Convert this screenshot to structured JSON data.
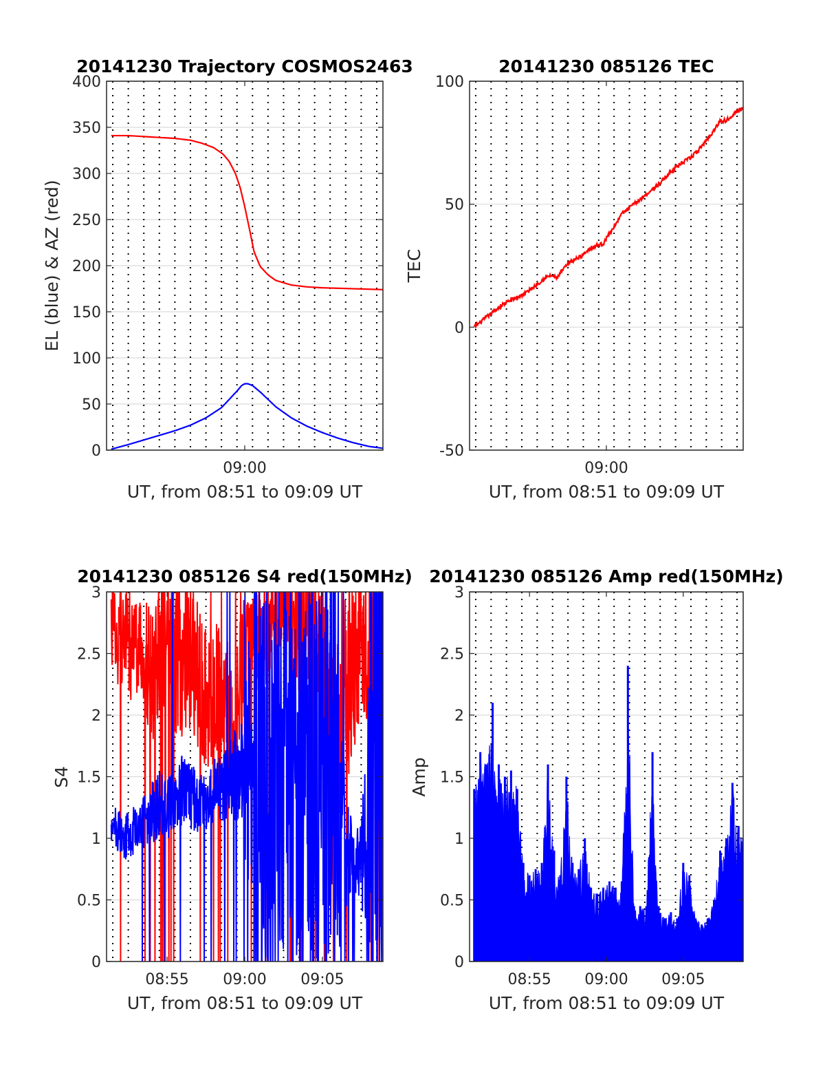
{
  "colors": {
    "red_series": "#ff0000",
    "blue_series": "#0000ff",
    "grid": "#d9d9d9",
    "axis": "#262626"
  },
  "chart_data": [
    {
      "id": "trajectory",
      "type": "line",
      "title": "20141230 Trajectory COSMOS2463",
      "xlabel": "UT, from 08:51 to 09:09 UT",
      "ylabel": "EL (blue) & AZ (red)",
      "x_unit": "minutes after 08:00 UT",
      "xlim": [
        51.1,
        68.9
      ],
      "ylim": [
        0,
        400
      ],
      "yticks": [
        0,
        50,
        100,
        150,
        200,
        250,
        300,
        350,
        400
      ],
      "ytick_labels": [
        "0",
        "50",
        "100",
        "150",
        "200",
        "250",
        "300",
        "350",
        "400"
      ],
      "xticks": [
        60
      ],
      "xtick_labels": [
        "09:00"
      ],
      "vgrid_dotted_minutes": [
        51.5,
        52.5,
        53.5,
        54.5,
        55.5,
        56.5,
        57.5,
        58.5,
        59.5,
        60.5,
        61.5,
        62.5,
        63.5,
        64.5,
        65.5,
        66.5,
        67.5,
        68.5
      ],
      "hgrid": true,
      "series": [
        {
          "color": "red",
          "kind": "line",
          "x": [
            51.4,
            52.5,
            53.5,
            54.5,
            55.5,
            56.5,
            57.2,
            58.0,
            58.6,
            59.0,
            59.4,
            59.7,
            60.0,
            60.3,
            60.6,
            61.0,
            61.5,
            62.0,
            63.0,
            64.0,
            65.0,
            66.0,
            67.0,
            68.0,
            68.9
          ],
          "y": [
            341,
            341,
            340,
            339,
            338,
            336,
            333,
            328,
            321,
            313,
            300,
            285,
            264,
            240,
            215,
            199,
            190,
            184,
            179,
            177,
            176,
            175.5,
            175,
            174.5,
            174
          ]
        },
        {
          "color": "blue",
          "kind": "line",
          "x": [
            51.4,
            52.5,
            53.5,
            54.5,
            55.5,
            56.5,
            57.5,
            58.5,
            59.0,
            59.5,
            59.8,
            60.0,
            60.2,
            60.5,
            61.0,
            61.5,
            62.0,
            62.5,
            63.0,
            64.0,
            65.0,
            66.0,
            67.0,
            68.0,
            68.9
          ],
          "y": [
            1,
            6,
            11,
            16,
            21,
            27,
            35,
            46,
            55,
            64,
            70,
            72,
            72,
            70,
            63,
            55,
            47,
            41,
            35,
            26,
            19,
            13,
            8,
            4,
            2
          ]
        }
      ]
    },
    {
      "id": "tec",
      "type": "line",
      "title": "20141230 085126 TEC",
      "xlabel": "UT, from 08:51 to 09:09 UT",
      "ylabel": "TEC",
      "x_unit": "minutes after 08:00 UT",
      "xlim": [
        51.1,
        68.9
      ],
      "ylim": [
        -50,
        100
      ],
      "yticks": [
        -50,
        0,
        50,
        100
      ],
      "ytick_labels": [
        "-50",
        "0",
        "50",
        "100"
      ],
      "xticks": [
        60
      ],
      "xtick_labels": [
        "09:00"
      ],
      "vgrid_dotted_minutes": [
        51.5,
        52.5,
        53.5,
        54.5,
        55.5,
        56.5,
        57.5,
        58.5,
        59.5,
        60.5,
        61.5,
        62.5,
        63.5,
        64.5,
        65.5,
        66.5,
        67.5,
        68.5
      ],
      "hgrid": true,
      "series": [
        {
          "color": "red",
          "kind": "line",
          "x": [
            51.4,
            52.0,
            52.6,
            53.2,
            53.8,
            54.5,
            55.0,
            55.6,
            56.0,
            56.4,
            56.8,
            57.0,
            57.4,
            57.8,
            58.4,
            58.9,
            59.3,
            59.8,
            60.1,
            60.4,
            60.7,
            61.0,
            61.6,
            62.2,
            62.8,
            63.4,
            64.0,
            64.5,
            65.0,
            65.5,
            66.0,
            66.5,
            67.0,
            67.4,
            67.8,
            68.3,
            68.9
          ],
          "y": [
            0,
            3,
            6,
            9,
            11,
            13,
            15,
            18,
            20,
            21,
            20,
            22,
            25,
            27,
            29,
            32,
            33,
            34,
            37,
            40,
            43,
            46,
            49,
            52,
            55,
            58,
            62,
            65,
            67,
            69,
            72,
            76,
            80,
            84,
            84,
            87,
            89
          ]
        }
      ]
    },
    {
      "id": "s4",
      "type": "line",
      "title": "20141230 085126 S4 red(150MHz)",
      "xlabel": "UT, from 08:51 to 09:09 UT",
      "ylabel": "S4",
      "x_unit": "minutes after 08:00 UT",
      "xlim": [
        51.1,
        68.9
      ],
      "ylim": [
        0,
        3
      ],
      "yticks": [
        0,
        0.5,
        1,
        1.5,
        2,
        2.5,
        3
      ],
      "ytick_labels": [
        "0",
        "0.5",
        "1",
        "1.5",
        "2",
        "2.5",
        "3"
      ],
      "xticks": [
        55,
        60,
        65
      ],
      "xtick_labels": [
        "08:55",
        "09:00",
        "09:05"
      ],
      "vgrid_dotted_minutes": [
        51.5,
        52.5,
        53.5,
        54.5,
        55.5,
        56.5,
        57.5,
        58.5,
        59.5,
        60.5,
        61.5,
        62.5,
        63.5,
        64.5,
        65.5,
        66.5,
        67.5,
        68.5
      ],
      "hgrid": true,
      "series": [
        {
          "color": "red",
          "kind": "noisy",
          "x": [
            51.4,
            51.8,
            52.2,
            52.7,
            53.3,
            54.0,
            54.6,
            55.2,
            55.8,
            56.4,
            57.0,
            57.6,
            58.2,
            58.8,
            59.4,
            59.8,
            60.2,
            60.6,
            61.0,
            61.5,
            62.0,
            62.5,
            63.0,
            63.5,
            64.0,
            64.5,
            65.0,
            65.5,
            66.0,
            66.5,
            67.0,
            67.5,
            68.0,
            68.5,
            68.9
          ],
          "y": [
            2.8,
            2.6,
            2.7,
            2.5,
            2.6,
            2.3,
            2.6,
            2.5,
            2.4,
            2.5,
            2.3,
            2.1,
            2.2,
            2.0,
            1.8,
            2.3,
            2.6,
            2.8,
            2.6,
            2.8,
            2.7,
            2.8,
            2.7,
            2.6,
            2.8,
            2.7,
            2.5,
            2.0,
            1.9,
            2.2,
            2.4,
            2.6,
            2.4,
            2.7,
            2.8
          ],
          "amplitude": [
            0.35,
            0.45,
            0.4,
            0.45,
            0.4,
            0.6,
            0.5,
            0.6,
            0.6,
            0.6,
            0.6,
            0.55,
            0.6,
            0.65,
            0.6,
            0.6,
            0.5,
            0.4,
            0.6,
            0.5,
            0.5,
            0.4,
            0.5,
            0.6,
            0.5,
            0.5,
            0.6,
            0.8,
            0.8,
            0.8,
            0.7,
            0.6,
            0.7,
            0.5,
            0.4
          ]
        },
        {
          "color": "blue",
          "kind": "noisy",
          "x": [
            51.4,
            51.8,
            52.2,
            52.7,
            53.3,
            54.0,
            54.6,
            55.2,
            55.8,
            56.4,
            57.0,
            57.6,
            58.2,
            58.8,
            59.4,
            59.8,
            60.2,
            60.6,
            61.0,
            61.5,
            62.0,
            62.5,
            63.0,
            63.5,
            64.0,
            64.5,
            65.0,
            65.5,
            66.0,
            66.5,
            67.0,
            67.5,
            68.0,
            68.5,
            68.9
          ],
          "y": [
            1.05,
            1.1,
            1.0,
            1.05,
            1.1,
            1.2,
            1.3,
            1.25,
            1.4,
            1.35,
            1.3,
            1.25,
            1.4,
            1.45,
            1.5,
            1.5,
            1.6,
            1.9,
            1.7,
            1.5,
            1.4,
            1.6,
            1.5,
            1.5,
            1.4,
            1.5,
            1.5,
            1.3,
            1.2,
            0.9,
            0.85,
            0.8,
            1.0,
            0.9,
            1.2
          ],
          "amplitude": [
            0.15,
            0.2,
            0.2,
            0.2,
            0.2,
            0.25,
            0.3,
            0.25,
            0.3,
            0.3,
            0.25,
            0.25,
            0.3,
            0.3,
            0.4,
            0.45,
            1.1,
            1.3,
            1.4,
            1.5,
            1.5,
            1.5,
            1.5,
            1.5,
            1.5,
            1.5,
            1.5,
            1.5,
            1.3,
            0.5,
            0.3,
            0.3,
            1.4,
            1.5,
            1.6
          ]
        }
      ]
    },
    {
      "id": "amp",
      "type": "area",
      "title": "20141230 085126 Amp red(150MHz)",
      "xlabel": "UT, from 08:51 to 09:09 UT",
      "ylabel": "Amp",
      "x_unit": "minutes after 08:00 UT",
      "xlim": [
        51.1,
        68.9
      ],
      "ylim": [
        0,
        3
      ],
      "yticks": [
        0,
        0.5,
        1,
        1.5,
        2,
        2.5,
        3
      ],
      "ytick_labels": [
        "0",
        "0.5",
        "1",
        "1.5",
        "2",
        "2.5",
        "3"
      ],
      "xticks": [
        55,
        60,
        65
      ],
      "xtick_labels": [
        "08:55",
        "09:00",
        "09:05"
      ],
      "vgrid_dotted_minutes": [
        51.5,
        52.5,
        53.5,
        54.5,
        55.5,
        56.5,
        57.5,
        58.5,
        59.5,
        60.5,
        61.5,
        62.5,
        63.5,
        64.5,
        65.5,
        66.5,
        67.5,
        68.5
      ],
      "hgrid": true,
      "series": [
        {
          "color": "blue",
          "kind": "fill",
          "x": [
            51.4,
            51.8,
            52.2,
            52.6,
            53.0,
            53.4,
            53.8,
            54.2,
            54.6,
            55.0,
            55.4,
            55.8,
            56.2,
            56.6,
            57.0,
            57.4,
            57.8,
            58.2,
            58.6,
            59.0,
            59.4,
            59.8,
            60.2,
            60.6,
            61.0,
            61.4,
            61.8,
            62.2,
            62.6,
            63.0,
            63.4,
            63.8,
            64.2,
            64.6,
            65.0,
            65.4,
            65.8,
            66.2,
            66.6,
            67.0,
            67.4,
            67.8,
            68.2,
            68.6,
            68.9
          ],
          "y": [
            1.4,
            1.7,
            1.6,
            2.1,
            1.6,
            1.5,
            1.55,
            1.4,
            0.8,
            0.7,
            0.75,
            0.8,
            1.6,
            0.9,
            0.7,
            1.5,
            0.8,
            0.75,
            1.0,
            0.6,
            0.55,
            0.6,
            0.65,
            0.6,
            0.65,
            2.4,
            0.45,
            0.45,
            0.45,
            1.7,
            0.45,
            0.35,
            0.4,
            0.35,
            0.8,
            0.7,
            0.35,
            0.3,
            0.35,
            0.5,
            0.9,
            1.0,
            1.45,
            1.1,
            1.0
          ]
        }
      ]
    }
  ]
}
